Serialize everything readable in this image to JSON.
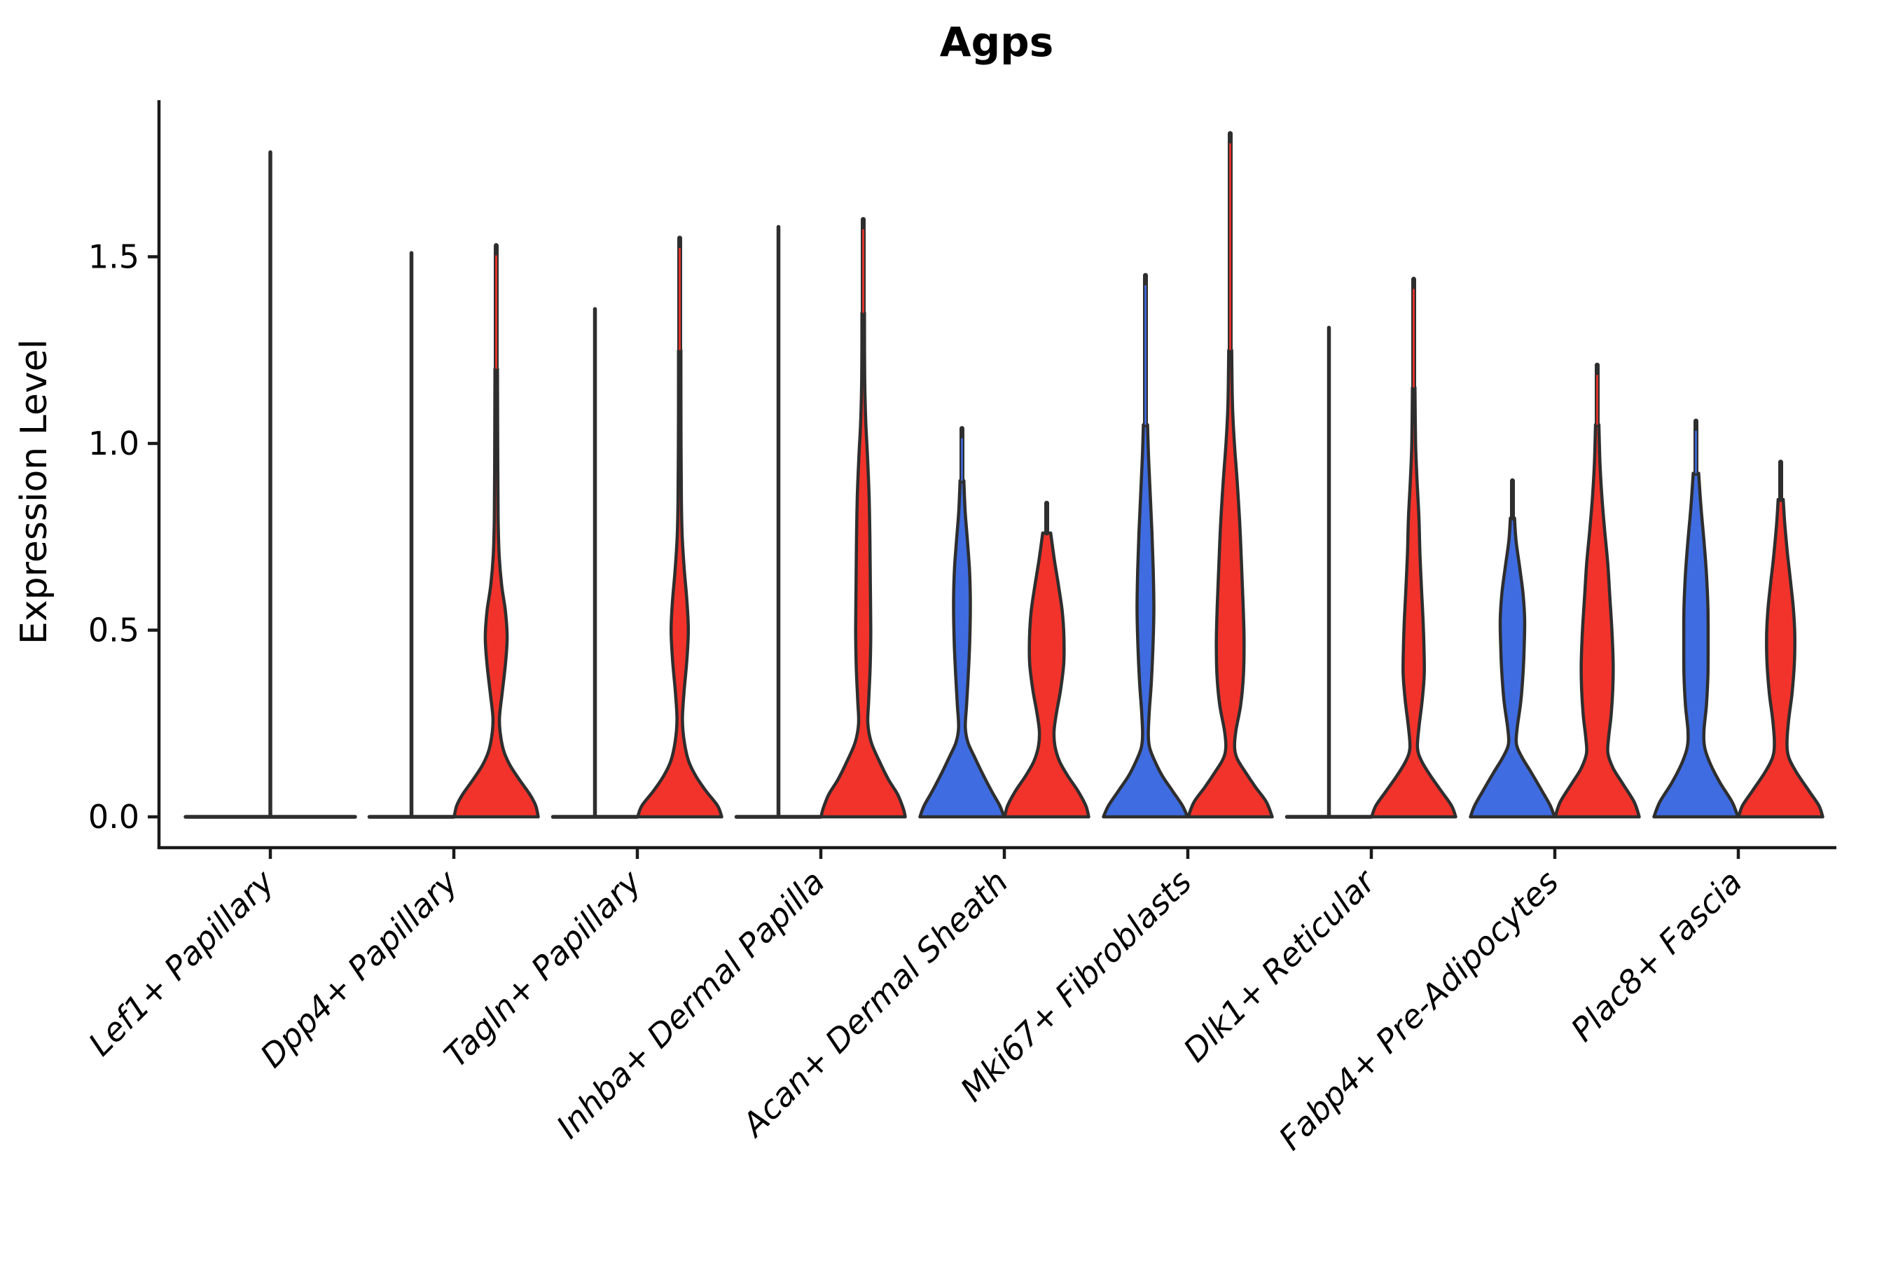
{
  "title": "Agps",
  "ylabel": "Expression Level",
  "colors": {
    "blue": "#3F6CE0",
    "red": "#F2332B",
    "outline": "#2E2E2E",
    "axis": "#1A1A1A",
    "text": "#000000",
    "background": "#FFFFFF"
  },
  "axes": {
    "y_tick_labels": [
      "0.0",
      "0.5",
      "1.0",
      "1.5"
    ],
    "y_tick_values": [
      0.0,
      0.5,
      1.0,
      1.5
    ],
    "ylim": [
      -0.08,
      1.92
    ],
    "x_label_rotation_deg": 45,
    "grid": "off",
    "legend": "none"
  },
  "chart_data": {
    "type": "violin",
    "title": "Agps",
    "ylabel": "Expression Level",
    "xlabel": "",
    "categories": [
      "Lef1+ Papillary",
      "Dpp4+ Papillary",
      "Tagln+ Papillary",
      "Inhba+ Dermal Papilla",
      "Acan+ Dermal Sheath",
      "Mki67+ Fibroblasts",
      "Dlk1+ Reticular",
      "Fabp4+ Pre-Adipocytes",
      "Plac8+ Fascia"
    ],
    "splits": [
      "blue",
      "red"
    ],
    "violins": [
      {
        "category_index": 0,
        "category": "Lef1+ Papillary",
        "split": "blue",
        "position": "center",
        "width": "full",
        "shape": "flat",
        "max_expression": 1.78,
        "density_profile": [
          [
            0,
            1.0
          ]
        ]
      },
      {
        "category_index": 1,
        "category": "Dpp4+ Papillary",
        "split": "blue",
        "position": "left",
        "width": "half",
        "shape": "flat",
        "max_expression": 1.51,
        "density_profile": [
          [
            0,
            1.0
          ]
        ]
      },
      {
        "category_index": 1,
        "category": "Dpp4+ Papillary",
        "split": "red",
        "position": "right",
        "width": "half",
        "shape": "body",
        "max_expression": 1.53,
        "density_profile": [
          [
            0,
            1.0
          ],
          [
            0.03,
            0.94
          ],
          [
            0.06,
            0.8
          ],
          [
            0.1,
            0.55
          ],
          [
            0.14,
            0.32
          ],
          [
            0.18,
            0.17
          ],
          [
            0.23,
            0.09
          ],
          [
            0.27,
            0.08
          ],
          [
            0.33,
            0.14
          ],
          [
            0.41,
            0.22
          ],
          [
            0.48,
            0.26
          ],
          [
            0.55,
            0.22
          ],
          [
            0.62,
            0.13
          ],
          [
            0.7,
            0.07
          ],
          [
            0.8,
            0.045
          ],
          [
            1.0,
            0.035
          ],
          [
            1.2,
            0.03
          ]
        ]
      },
      {
        "category_index": 2,
        "category": "Tagln+ Papillary",
        "split": "blue",
        "position": "left",
        "width": "half",
        "shape": "flat",
        "max_expression": 1.36,
        "density_profile": [
          [
            0,
            1.0
          ]
        ]
      },
      {
        "category_index": 2,
        "category": "Tagln+ Papillary",
        "split": "red",
        "position": "right",
        "width": "half",
        "shape": "body",
        "max_expression": 1.55,
        "density_profile": [
          [
            0,
            1.0
          ],
          [
            0.03,
            0.9
          ],
          [
            0.07,
            0.62
          ],
          [
            0.11,
            0.38
          ],
          [
            0.15,
            0.21
          ],
          [
            0.2,
            0.11
          ],
          [
            0.26,
            0.065
          ],
          [
            0.33,
            0.1
          ],
          [
            0.42,
            0.17
          ],
          [
            0.5,
            0.205
          ],
          [
            0.58,
            0.17
          ],
          [
            0.66,
            0.11
          ],
          [
            0.75,
            0.06
          ],
          [
            0.85,
            0.04
          ],
          [
            1.05,
            0.03
          ],
          [
            1.25,
            0.028
          ]
        ]
      },
      {
        "category_index": 3,
        "category": "Inhba+ Dermal Papilla",
        "split": "blue",
        "position": "left",
        "width": "half",
        "shape": "flat",
        "max_expression": 1.58,
        "density_profile": [
          [
            0,
            1.0
          ]
        ]
      },
      {
        "category_index": 3,
        "category": "Inhba+ Dermal Papilla",
        "split": "red",
        "position": "right",
        "width": "half",
        "shape": "body",
        "max_expression": 1.6,
        "density_profile": [
          [
            0,
            1.0
          ],
          [
            0.02,
            0.96
          ],
          [
            0.06,
            0.82
          ],
          [
            0.1,
            0.6
          ],
          [
            0.15,
            0.38
          ],
          [
            0.2,
            0.19
          ],
          [
            0.25,
            0.11
          ],
          [
            0.31,
            0.13
          ],
          [
            0.4,
            0.165
          ],
          [
            0.5,
            0.18
          ],
          [
            0.62,
            0.17
          ],
          [
            0.74,
            0.16
          ],
          [
            0.86,
            0.14
          ],
          [
            0.97,
            0.1
          ],
          [
            1.06,
            0.06
          ],
          [
            1.18,
            0.035
          ],
          [
            1.35,
            0.03
          ]
        ]
      },
      {
        "category_index": 4,
        "category": "Acan+ Dermal Sheath",
        "split": "blue",
        "position": "left",
        "width": "half",
        "shape": "body",
        "max_expression": 1.04,
        "density_profile": [
          [
            0,
            1.0
          ],
          [
            0.03,
            0.9
          ],
          [
            0.07,
            0.7
          ],
          [
            0.12,
            0.47
          ],
          [
            0.16,
            0.3
          ],
          [
            0.2,
            0.14
          ],
          [
            0.24,
            0.08
          ],
          [
            0.3,
            0.11
          ],
          [
            0.38,
            0.15
          ],
          [
            0.47,
            0.185
          ],
          [
            0.57,
            0.2
          ],
          [
            0.66,
            0.18
          ],
          [
            0.74,
            0.13
          ],
          [
            0.82,
            0.075
          ],
          [
            0.9,
            0.045
          ]
        ]
      },
      {
        "category_index": 4,
        "category": "Acan+ Dermal Sheath",
        "split": "red",
        "position": "right",
        "width": "half",
        "shape": "body",
        "max_expression": 0.84,
        "density_profile": [
          [
            0,
            1.0
          ],
          [
            0.03,
            0.93
          ],
          [
            0.07,
            0.74
          ],
          [
            0.11,
            0.5
          ],
          [
            0.15,
            0.3
          ],
          [
            0.19,
            0.195
          ],
          [
            0.23,
            0.175
          ],
          [
            0.28,
            0.235
          ],
          [
            0.34,
            0.33
          ],
          [
            0.41,
            0.405
          ],
          [
            0.48,
            0.41
          ],
          [
            0.55,
            0.37
          ],
          [
            0.62,
            0.28
          ],
          [
            0.69,
            0.18
          ],
          [
            0.76,
            0.095
          ]
        ]
      },
      {
        "category_index": 5,
        "category": "Mki67+ Fibroblasts",
        "split": "blue",
        "position": "left",
        "width": "half",
        "shape": "body",
        "max_expression": 1.45,
        "density_profile": [
          [
            0,
            1.0
          ],
          [
            0.03,
            0.88
          ],
          [
            0.07,
            0.64
          ],
          [
            0.11,
            0.4
          ],
          [
            0.15,
            0.22
          ],
          [
            0.185,
            0.1
          ],
          [
            0.22,
            0.068
          ],
          [
            0.28,
            0.09
          ],
          [
            0.36,
            0.14
          ],
          [
            0.46,
            0.18
          ],
          [
            0.56,
            0.2
          ],
          [
            0.66,
            0.185
          ],
          [
            0.76,
            0.155
          ],
          [
            0.86,
            0.115
          ],
          [
            0.96,
            0.075
          ],
          [
            1.05,
            0.05
          ]
        ]
      },
      {
        "category_index": 5,
        "category": "Mki67+ Fibroblasts",
        "split": "red",
        "position": "right",
        "width": "half",
        "shape": "body",
        "max_expression": 1.83,
        "density_profile": [
          [
            0,
            1.0
          ],
          [
            0.04,
            0.86
          ],
          [
            0.08,
            0.6
          ],
          [
            0.12,
            0.36
          ],
          [
            0.155,
            0.17
          ],
          [
            0.185,
            0.105
          ],
          [
            0.23,
            0.135
          ],
          [
            0.3,
            0.25
          ],
          [
            0.38,
            0.315
          ],
          [
            0.47,
            0.33
          ],
          [
            0.56,
            0.31
          ],
          [
            0.66,
            0.275
          ],
          [
            0.78,
            0.23
          ],
          [
            0.9,
            0.165
          ],
          [
            1.0,
            0.1
          ],
          [
            1.1,
            0.055
          ],
          [
            1.25,
            0.035
          ]
        ]
      },
      {
        "category_index": 6,
        "category": "Dlk1+ Reticular",
        "split": "blue",
        "position": "left",
        "width": "half",
        "shape": "flat",
        "max_expression": 1.31,
        "density_profile": [
          [
            0,
            1.0
          ]
        ]
      },
      {
        "category_index": 6,
        "category": "Dlk1+ Reticular",
        "split": "red",
        "position": "right",
        "width": "half",
        "shape": "body",
        "max_expression": 1.44,
        "density_profile": [
          [
            0,
            1.0
          ],
          [
            0.03,
            0.9
          ],
          [
            0.07,
            0.65
          ],
          [
            0.11,
            0.4
          ],
          [
            0.15,
            0.185
          ],
          [
            0.185,
            0.09
          ],
          [
            0.24,
            0.125
          ],
          [
            0.31,
            0.2
          ],
          [
            0.38,
            0.25
          ],
          [
            0.45,
            0.245
          ],
          [
            0.52,
            0.225
          ],
          [
            0.6,
            0.19
          ],
          [
            0.7,
            0.15
          ],
          [
            0.8,
            0.125
          ],
          [
            0.9,
            0.08
          ],
          [
            1.0,
            0.045
          ],
          [
            1.15,
            0.03
          ]
        ]
      },
      {
        "category_index": 7,
        "category": "Fabp4+ Pre-Adipocytes",
        "split": "blue",
        "position": "left",
        "width": "half",
        "shape": "body",
        "max_expression": 0.9,
        "density_profile": [
          [
            0,
            1.0
          ],
          [
            0.03,
            0.9
          ],
          [
            0.07,
            0.7
          ],
          [
            0.12,
            0.44
          ],
          [
            0.16,
            0.225
          ],
          [
            0.195,
            0.095
          ],
          [
            0.24,
            0.115
          ],
          [
            0.31,
            0.2
          ],
          [
            0.39,
            0.255
          ],
          [
            0.46,
            0.28
          ],
          [
            0.53,
            0.29
          ],
          [
            0.6,
            0.25
          ],
          [
            0.67,
            0.17
          ],
          [
            0.74,
            0.085
          ],
          [
            0.8,
            0.05
          ]
        ]
      },
      {
        "category_index": 7,
        "category": "Fabp4+ Pre-Adipocytes",
        "split": "red",
        "position": "right",
        "width": "half",
        "shape": "body",
        "max_expression": 1.21,
        "density_profile": [
          [
            0,
            1.0
          ],
          [
            0.04,
            0.88
          ],
          [
            0.09,
            0.6
          ],
          [
            0.13,
            0.38
          ],
          [
            0.17,
            0.255
          ],
          [
            0.21,
            0.27
          ],
          [
            0.27,
            0.33
          ],
          [
            0.34,
            0.37
          ],
          [
            0.41,
            0.38
          ],
          [
            0.5,
            0.35
          ],
          [
            0.59,
            0.3
          ],
          [
            0.68,
            0.25
          ],
          [
            0.77,
            0.175
          ],
          [
            0.86,
            0.11
          ],
          [
            0.95,
            0.065
          ],
          [
            1.05,
            0.04
          ]
        ]
      },
      {
        "category_index": 8,
        "category": "Plac8+ Fascia",
        "split": "blue",
        "position": "left",
        "width": "half",
        "shape": "body",
        "max_expression": 1.06,
        "density_profile": [
          [
            0,
            1.0
          ],
          [
            0.04,
            0.86
          ],
          [
            0.09,
            0.58
          ],
          [
            0.14,
            0.35
          ],
          [
            0.185,
            0.21
          ],
          [
            0.23,
            0.19
          ],
          [
            0.3,
            0.25
          ],
          [
            0.38,
            0.285
          ],
          [
            0.47,
            0.29
          ],
          [
            0.56,
            0.285
          ],
          [
            0.65,
            0.25
          ],
          [
            0.74,
            0.19
          ],
          [
            0.83,
            0.12
          ],
          [
            0.92,
            0.065
          ]
        ]
      },
      {
        "category_index": 8,
        "category": "Plac8+ Fascia",
        "split": "red",
        "position": "right",
        "width": "half",
        "shape": "body",
        "max_expression": 0.95,
        "density_profile": [
          [
            0,
            1.0
          ],
          [
            0.03,
            0.91
          ],
          [
            0.07,
            0.67
          ],
          [
            0.12,
            0.37
          ],
          [
            0.16,
            0.19
          ],
          [
            0.2,
            0.15
          ],
          [
            0.26,
            0.19
          ],
          [
            0.33,
            0.27
          ],
          [
            0.41,
            0.325
          ],
          [
            0.49,
            0.335
          ],
          [
            0.56,
            0.3
          ],
          [
            0.63,
            0.235
          ],
          [
            0.7,
            0.165
          ],
          [
            0.78,
            0.1
          ],
          [
            0.85,
            0.06
          ]
        ]
      }
    ]
  }
}
